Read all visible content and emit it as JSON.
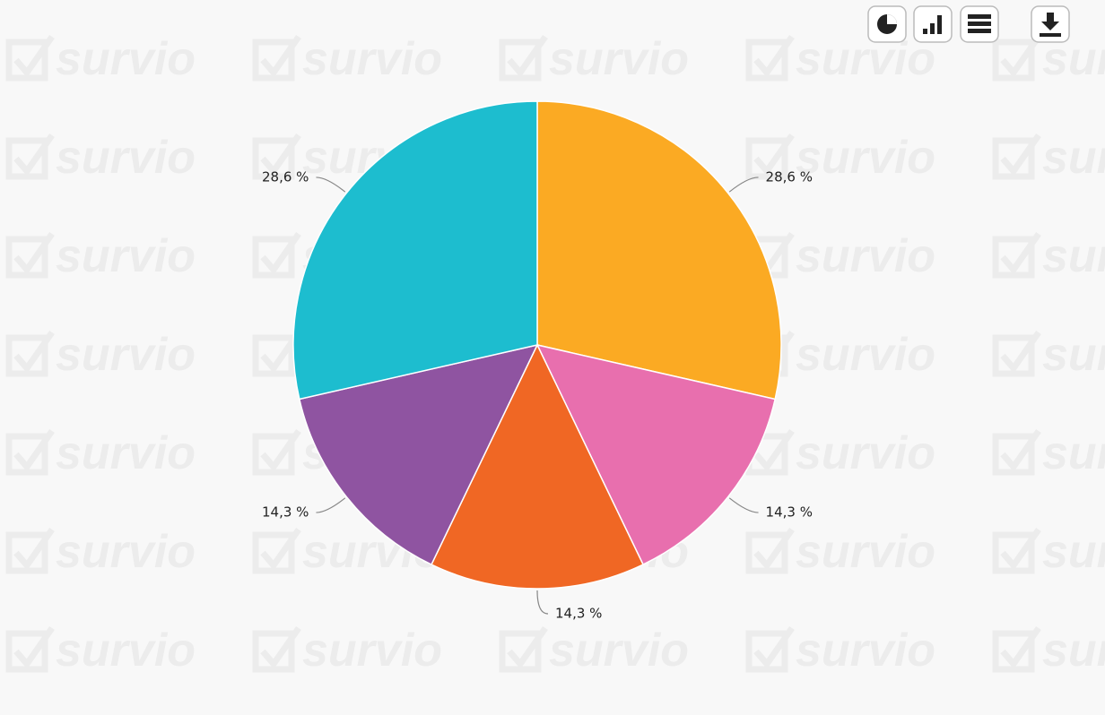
{
  "watermark": "survio",
  "chart_data": {
    "type": "pie",
    "values": [
      28.6,
      14.3,
      14.3,
      14.3,
      28.6
    ],
    "value_labels": [
      "28,6 %",
      "14,3 %",
      "14,3 %",
      "14,3 %",
      "28,6 %"
    ],
    "colors": [
      "#fbaa23",
      "#e86fae",
      "#f06724",
      "#8f54a1",
      "#1dbdcf"
    ]
  }
}
